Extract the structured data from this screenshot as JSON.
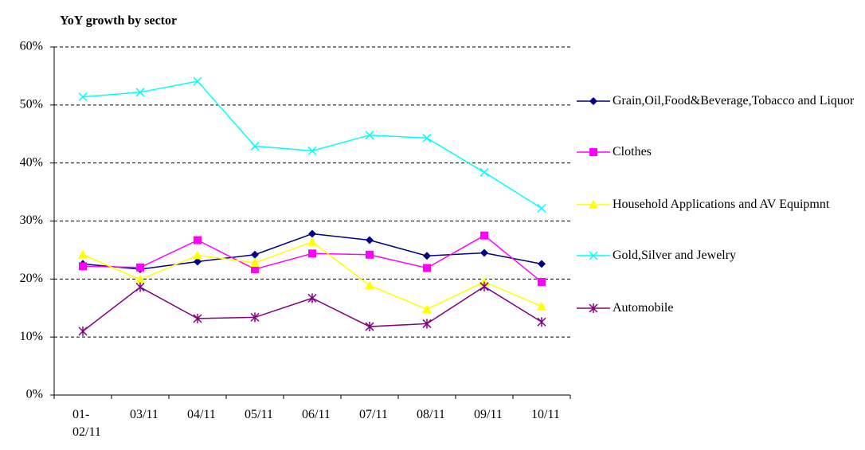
{
  "chart_data": {
    "type": "line",
    "title": "YoY growth by sector",
    "categories": [
      "01-02/11",
      "03/11",
      "04/11",
      "05/11",
      "06/11",
      "07/11",
      "08/11",
      "09/11",
      "10/11"
    ],
    "series": [
      {
        "name": "Grain,Oil,Food&Beverage,Tobacco and Liquor",
        "color": "#000080",
        "marker": "diamond",
        "values": [
          22.6,
          21.7,
          23.0,
          24.2,
          27.8,
          26.7,
          24.0,
          24.5,
          22.6
        ]
      },
      {
        "name": "Clothes",
        "color": "#ff00ff",
        "marker": "square",
        "values": [
          22.2,
          22.0,
          26.7,
          21.7,
          24.4,
          24.2,
          21.9,
          27.5,
          19.5
        ]
      },
      {
        "name": "Household Applications and AV Equipmnt",
        "color": "#ffff00",
        "marker": "triangle",
        "values": [
          24.2,
          19.9,
          24.1,
          22.8,
          26.4,
          18.9,
          14.8,
          19.5,
          15.3
        ]
      },
      {
        "name": "Gold,Silver and Jewelry",
        "color": "#00ffff",
        "marker": "x",
        "values": [
          51.4,
          52.2,
          54.1,
          42.9,
          42.1,
          44.8,
          44.3,
          38.4,
          32.2
        ]
      },
      {
        "name": "Automobile",
        "color": "#800080",
        "marker": "star",
        "values": [
          11.0,
          18.6,
          13.2,
          13.4,
          16.7,
          11.8,
          12.3,
          18.7,
          12.6
        ]
      }
    ],
    "ylim": [
      0,
      60
    ],
    "yticks": [
      {
        "value": 0,
        "label": "0%"
      },
      {
        "value": 10,
        "label": "10%"
      },
      {
        "value": 20,
        "label": "20%"
      },
      {
        "value": 30,
        "label": "30%"
      },
      {
        "value": 40,
        "label": "40%"
      },
      {
        "value": 50,
        "label": "50%"
      },
      {
        "value": 60,
        "label": "60%"
      }
    ],
    "grid": true,
    "legend": "right"
  }
}
